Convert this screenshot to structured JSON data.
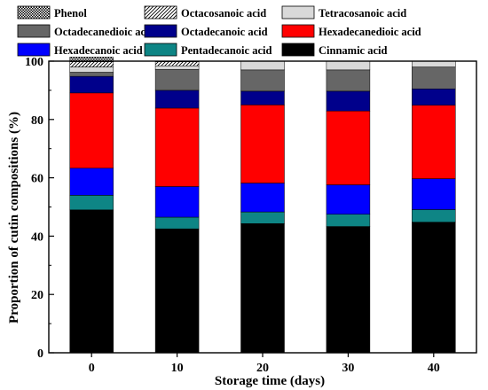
{
  "chart_data": {
    "type": "bar",
    "stacked": true,
    "xlabel": "Storage time (days)",
    "ylabel": "Proportion of cutin compositions (%)",
    "ylim": [
      0,
      100
    ],
    "yticks": [
      0,
      20,
      40,
      60,
      80,
      100
    ],
    "categories": [
      "0",
      "10",
      "20",
      "30",
      "40"
    ],
    "legend_position": "top",
    "series": [
      {
        "name": "Cinnamic acid",
        "color": "#000000",
        "pattern": "solid",
        "values": [
          49.0,
          42.5,
          44.3,
          43.3,
          44.8
        ]
      },
      {
        "name": "Pentadecanoic acid",
        "color": "#0e8585",
        "pattern": "solid",
        "values": [
          5.0,
          4.0,
          4.0,
          4.2,
          4.3
        ]
      },
      {
        "name": "Hexadecanoic acid",
        "color": "#0000ff",
        "pattern": "solid",
        "values": [
          9.3,
          10.5,
          9.9,
          10.1,
          10.6
        ]
      },
      {
        "name": "Hexadecanedioic acid",
        "color": "#ff0000",
        "pattern": "solid",
        "values": [
          25.8,
          26.9,
          26.8,
          25.3,
          25.2
        ]
      },
      {
        "name": "Octadecanoic acid",
        "color": "#00008b",
        "pattern": "solid",
        "values": [
          5.7,
          6.1,
          4.7,
          6.8,
          5.6
        ]
      },
      {
        "name": "Octadecanedioic  acid",
        "color": "#666666",
        "pattern": "solid",
        "values": [
          1.4,
          7.2,
          7.3,
          7.3,
          7.5
        ]
      },
      {
        "name": "Tetracosanoic acid",
        "color": "#d9d9d9",
        "pattern": "solid",
        "values": [
          1.8,
          1.2,
          3.0,
          3.0,
          2.0
        ]
      },
      {
        "name": "Octacosanoic acid",
        "color": "#ffffff",
        "pattern": "diagonal",
        "values": [
          1.8,
          1.4,
          0,
          0,
          0
        ]
      },
      {
        "name": "Phenol",
        "color": "#ffffff",
        "pattern": "crosshatch",
        "values": [
          1.6,
          0.2,
          0,
          0,
          0
        ]
      }
    ]
  },
  "legend_order": [
    "Phenol",
    "Octacosanoic acid",
    "Tetracosanoic acid",
    "Octadecanedioic  acid",
    "Octadecanoic acid",
    "Hexadecanedioic acid",
    "Hexadecanoic acid",
    "Pentadecanoic acid",
    "Cinnamic acid"
  ]
}
